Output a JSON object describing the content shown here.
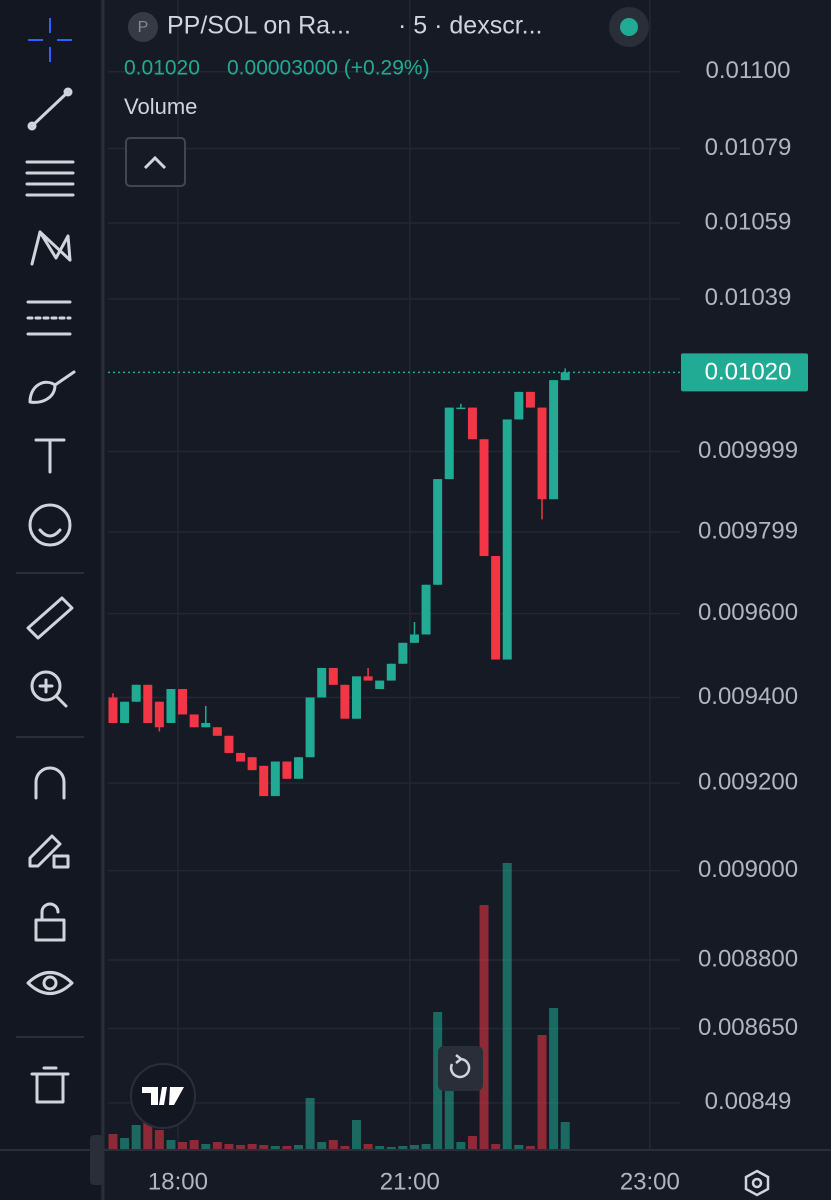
{
  "header": {
    "symbol": "PP/SOL on Ra...",
    "source": "· 5 · dexscr...",
    "icon_letter": "P",
    "price": "0.01020",
    "change": "0.00003000 (+0.29%)",
    "volume_label": "Volume"
  },
  "chart_data": {
    "type": "candlestick",
    "log": true,
    "grid": true,
    "up_color": "#22ab94",
    "down_color": "#f23645",
    "open": [
      0.0094,
      0.00934,
      0.00939,
      0.00943,
      0.00939,
      0.00934,
      0.00942,
      0.00936,
      0.00933,
      0.00933,
      0.00931,
      0.00927,
      0.00926,
      0.00924,
      0.00917,
      0.00925,
      0.00921,
      0.00926,
      0.0094,
      0.00947,
      0.00943,
      0.00935,
      0.00945,
      0.00942,
      0.00944,
      0.00948,
      0.00953,
      0.00955,
      0.00967,
      0.00993,
      0.01011,
      0.01011,
      0.01003,
      0.00974,
      0.00949,
      0.01008,
      0.01015,
      0.01011,
      0.00988,
      0.01018
    ],
    "high": [
      0.00941,
      0.00939,
      0.00943,
      0.00943,
      0.00939,
      0.00942,
      0.00942,
      0.00936,
      0.00938,
      0.00933,
      0.00931,
      0.00927,
      0.00926,
      0.00924,
      0.00925,
      0.00925,
      0.00926,
      0.0094,
      0.00947,
      0.00947,
      0.00943,
      0.00945,
      0.00947,
      0.00944,
      0.00948,
      0.00953,
      0.00958,
      0.00967,
      0.00993,
      0.01011,
      0.01012,
      0.01011,
      0.01003,
      0.00974,
      0.01008,
      0.01015,
      0.01015,
      0.01011,
      0.01018,
      0.01021
    ],
    "low": [
      0.00934,
      0.00934,
      0.00939,
      0.00934,
      0.00932,
      0.00934,
      0.00936,
      0.00933,
      0.00933,
      0.00931,
      0.00927,
      0.00925,
      0.00923,
      0.00917,
      0.00917,
      0.00921,
      0.00921,
      0.00926,
      0.0094,
      0.00943,
      0.00935,
      0.00935,
      0.00944,
      0.00942,
      0.00944,
      0.00948,
      0.00953,
      0.00955,
      0.00967,
      0.00993,
      0.01011,
      0.01003,
      0.00974,
      0.00949,
      0.00949,
      0.01008,
      0.01011,
      0.00983,
      0.00988,
      0.01018
    ],
    "close": [
      0.00934,
      0.00939,
      0.00943,
      0.00934,
      0.00933,
      0.00942,
      0.00936,
      0.00933,
      0.00934,
      0.00931,
      0.00927,
      0.00925,
      0.00923,
      0.00917,
      0.00925,
      0.00921,
      0.00926,
      0.0094,
      0.00947,
      0.00943,
      0.00935,
      0.00945,
      0.00944,
      0.00944,
      0.00948,
      0.00953,
      0.00955,
      0.00967,
      0.00993,
      0.01011,
      0.01011,
      0.01003,
      0.00974,
      0.00949,
      0.01008,
      0.01015,
      0.01011,
      0.00988,
      0.01018,
      0.0102
    ],
    "volume": [
      16,
      12,
      25,
      30,
      20,
      10,
      8,
      10,
      6,
      8,
      6,
      5,
      6,
      5,
      4,
      4,
      5,
      52,
      8,
      10,
      4,
      30,
      6,
      4,
      3,
      4,
      5,
      6,
      138,
      90,
      8,
      14,
      245,
      6,
      287,
      5,
      4,
      115,
      142,
      28
    ],
    "volume_lim": [
      0,
      300
    ],
    "ylim": [
      0.00839,
      0.0112
    ],
    "yticks": [
      {
        "value": 0.011,
        "label": "0.01100"
      },
      0.01079,
      0.01059,
      0.01039,
      0.009999,
      0.009799,
      {
        "value": 0.0096,
        "label": "0.009600"
      },
      {
        "value": 0.0094,
        "label": "0.009400"
      },
      {
        "value": 0.0092,
        "label": "0.009200"
      },
      {
        "value": 0.009,
        "label": "0.009000"
      },
      {
        "value": 0.0088,
        "label": "0.008800"
      },
      {
        "value": 0.00865,
        "label": "0.008650"
      },
      0.00849
    ],
    "xlim": [
      -0.43,
      48.9
    ],
    "xticks": [
      {
        "value": 5.6,
        "label": "18:00"
      },
      {
        "value": 25.6,
        "label": "21:00"
      },
      {
        "value": 46.3,
        "label": "23:00"
      }
    ],
    "last_price": {
      "value": 0.0102,
      "label": "0.01020"
    }
  }
}
